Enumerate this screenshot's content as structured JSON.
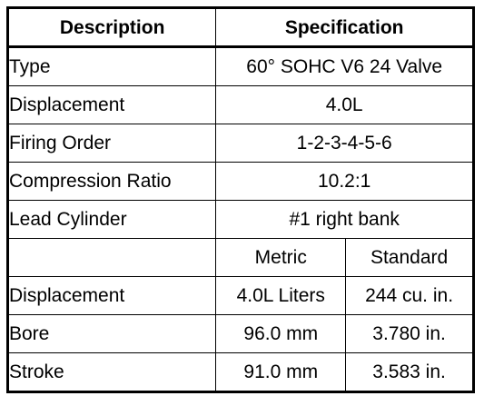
{
  "header": {
    "description": "Description",
    "specification": "Specification"
  },
  "rows": [
    {
      "label": "Type",
      "value": "60° SOHC V6 24 Valve"
    },
    {
      "label": "Displacement",
      "value": "4.0L"
    },
    {
      "label": "Firing Order",
      "value": "1-2-3-4-5-6"
    },
    {
      "label": "Compression Ratio",
      "value": "10.2:1"
    },
    {
      "label": "Lead Cylinder",
      "value": "#1 right bank"
    }
  ],
  "units_header": {
    "label": "",
    "metric": "Metric",
    "standard": "Standard"
  },
  "measure_rows": [
    {
      "label": "Displacement",
      "metric": "4.0L Liters",
      "standard": "244 cu. in."
    },
    {
      "label": "Bore",
      "metric": "96.0 mm",
      "standard": "3.780 in."
    },
    {
      "label": "Stroke",
      "metric": "91.0 mm",
      "standard": "3.583 in."
    }
  ]
}
